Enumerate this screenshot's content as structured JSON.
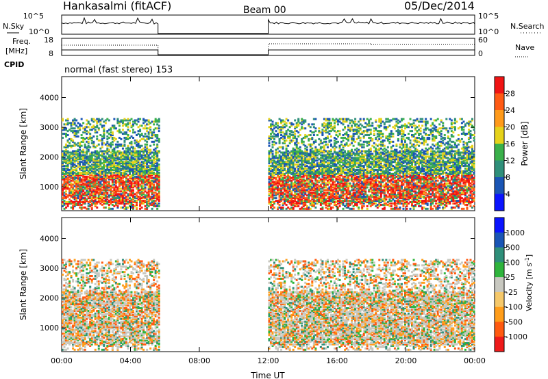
{
  "header": {
    "station": "Hankasalmi (fitACF)",
    "beam": "Beam 00",
    "date": "05/Dec/2014"
  },
  "labels": {
    "nsky": "N.Sky",
    "nsearch": "N.Search",
    "freq_line1": "Freq.",
    "freq_line2": "[MHz]",
    "nave": "Nave",
    "cpid": "CPID",
    "cpid_value": "normal (fast stereo) 153"
  },
  "colors": {
    "power": [
      "#0a14ff",
      "#1a55b5",
      "#2f8f7a",
      "#3ab04a",
      "#e6d21a",
      "#ff9a1a",
      "#ff5a14",
      "#f01414"
    ],
    "velocity": [
      "#ee1a1a",
      "#ff5a10",
      "#ff9d1a",
      "#f5c86a",
      "#c8c8c0",
      "#2fb43c",
      "#2f8f7a",
      "#1a55b5",
      "#0a14ff"
    ]
  },
  "chart_data": [
    {
      "type": "line",
      "title": "N.Sky / N.Search",
      "y_left_ticks": [
        "10^5",
        "10^0"
      ],
      "y_right_ticks": [
        "10^5",
        "10^0"
      ],
      "segments": [
        {
          "x_range_hours": [
            0.0,
            5.6
          ],
          "level": "high"
        },
        {
          "x_range_hours": [
            12.0,
            24.0
          ],
          "level": "high"
        }
      ]
    },
    {
      "type": "line",
      "title": "Freq. / Nave",
      "y_left_ticks": [
        "18",
        "8"
      ],
      "y_right_ticks": [
        "60",
        "0"
      ],
      "segments_freq": [
        {
          "x_range_hours": [
            0.0,
            5.6
          ]
        },
        {
          "x_range_hours": [
            12.0,
            24.0
          ]
        }
      ]
    },
    {
      "type": "heatmap",
      "title": "Power [dB]",
      "ylabel": "Slant Range [km]",
      "y_ticks": [
        "1000",
        "2000",
        "3000",
        "4000"
      ],
      "x_ticks": [
        "00:00",
        "04:00",
        "08:00",
        "12:00",
        "16:00",
        "20:00",
        "00:00"
      ],
      "colorbar_ticks": [
        "28",
        "24",
        "20",
        "16",
        "12",
        "8",
        "4"
      ],
      "colorbar_label": "Power [dB]",
      "data_windows_hours": [
        [
          0.0,
          5.6
        ],
        [
          12.0,
          24.0
        ]
      ]
    },
    {
      "type": "heatmap",
      "title": "Velocity [m s-1]",
      "ylabel": "Slant Range [km]",
      "y_ticks": [
        "1000",
        "2000",
        "3000",
        "4000"
      ],
      "x_ticks": [
        "00:00",
        "04:00",
        "08:00",
        "12:00",
        "16:00",
        "20:00",
        "00:00"
      ],
      "xlabel": "Time UT",
      "colorbar_ticks": [
        "1000",
        "500",
        "100",
        "25",
        "-25",
        "-100",
        "-500",
        "-1000"
      ],
      "colorbar_label_main": "Velocity",
      "colorbar_label_unit": "[m s",
      "colorbar_label_exp": "-1",
      "colorbar_label_close": "]",
      "data_windows_hours": [
        [
          0.0,
          5.6
        ],
        [
          12.0,
          24.0
        ]
      ]
    }
  ]
}
